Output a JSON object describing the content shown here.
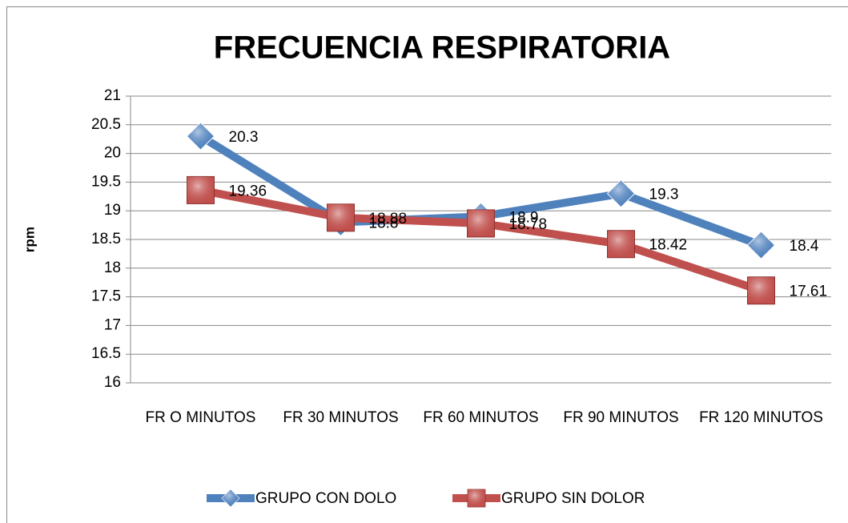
{
  "chart_data": {
    "type": "line",
    "title": "FRECUENCIA RESPIRATORIA",
    "y_label": "rpm",
    "categories": [
      "FR O MINUTOS",
      "FR 30 MINUTOS",
      "FR 60 MINUTOS",
      "FR 90 MINUTOS",
      "FR 120 MINUTOS"
    ],
    "series": [
      {
        "name": "GRUPO CON DOLO",
        "color": "#4f81bd",
        "marker": "diamond",
        "values": [
          20.3,
          18.8,
          18.9,
          19.3,
          18.4
        ]
      },
      {
        "name": "GRUPO SIN DOLOR",
        "color": "#c0504d",
        "marker": "square",
        "values": [
          19.36,
          18.88,
          18.78,
          18.42,
          17.61
        ]
      }
    ],
    "ylim": [
      16,
      21
    ],
    "yticks": [
      16,
      16.5,
      17,
      17.5,
      18,
      18.5,
      19,
      19.5,
      20,
      20.5,
      21
    ],
    "grid": true,
    "legend": "bottom"
  }
}
